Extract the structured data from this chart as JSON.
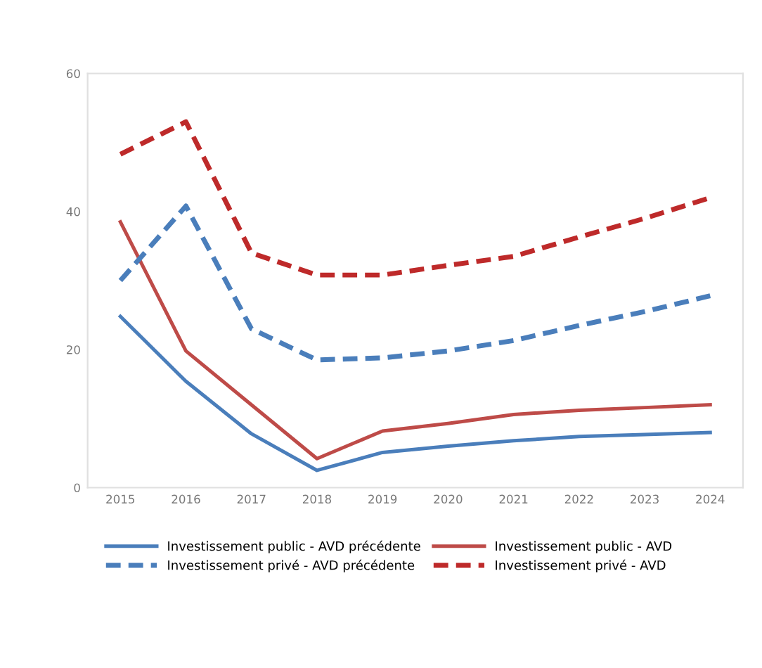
{
  "chart_data": {
    "type": "line",
    "categories": [
      "2015",
      "2016",
      "2017",
      "2018",
      "2019",
      "2020",
      "2021",
      "2022",
      "2023",
      "2024"
    ],
    "series": [
      {
        "name": "Investissement public - AVD précédente",
        "color": "#4a7ebb",
        "line_style": "solid",
        "values": [
          24.8,
          15.4,
          7.8,
          2.5,
          5.1,
          6.0,
          6.8,
          7.4,
          7.7,
          8.0
        ]
      },
      {
        "name": "Investissement public - AVD",
        "color": "#be4b48",
        "line_style": "solid",
        "values": [
          38.5,
          19.8,
          12.0,
          4.2,
          8.2,
          9.3,
          10.6,
          11.2,
          11.6,
          12.0
        ]
      },
      {
        "name": "Investissement privé - AVD précédente",
        "color": "#4a7ebb",
        "line_style": "dashed",
        "values": [
          30.0,
          40.8,
          23.0,
          18.5,
          18.8,
          19.8,
          21.3,
          23.5,
          25.5,
          27.8
        ]
      },
      {
        "name": "Investissement privé - AVD",
        "color": "#be2a2a",
        "line_style": "dashed",
        "values": [
          48.3,
          53.0,
          34.0,
          30.8,
          30.8,
          32.2,
          33.5,
          36.3,
          39.0,
          42.0
        ]
      }
    ],
    "ylim": [
      0,
      60
    ],
    "yticks": [
      0,
      20,
      40,
      60
    ],
    "grid": false,
    "legend": "bottom",
    "marker": "none"
  }
}
